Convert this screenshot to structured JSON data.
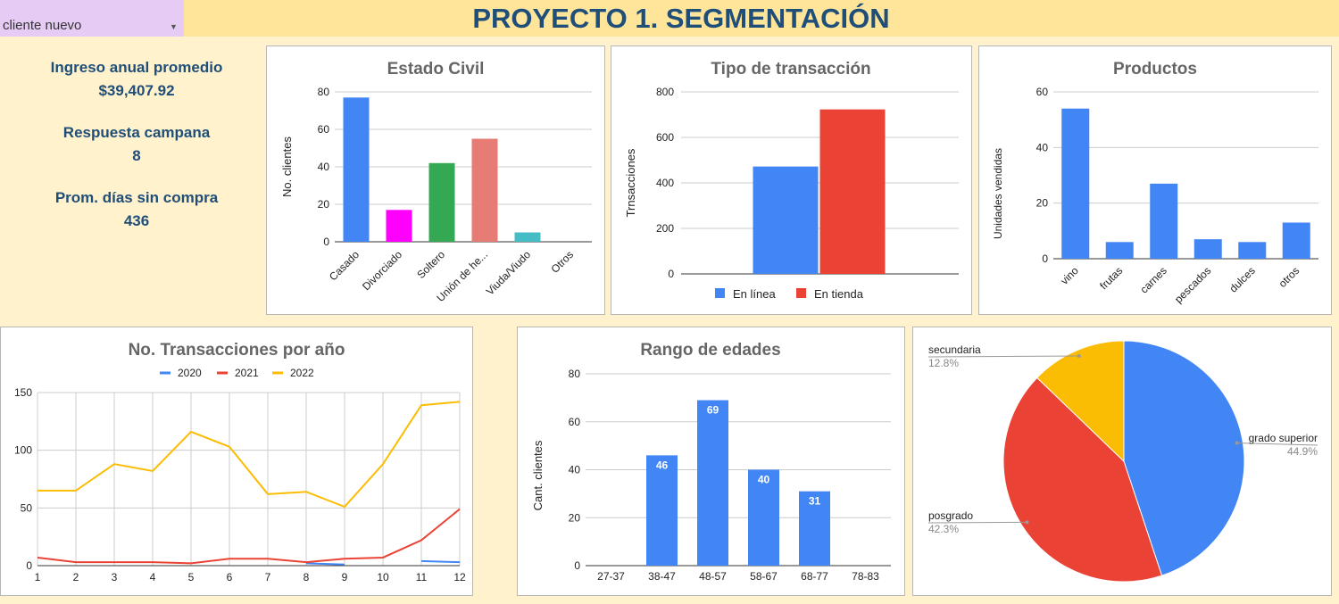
{
  "filter": {
    "selected": "cliente nuevo"
  },
  "header": {
    "title": "PROYECTO 1. SEGMENTACIÓN"
  },
  "kpis": [
    {
      "label": "Ingreso anual promedio",
      "value": "$39,407.92"
    },
    {
      "label": "Respuesta campana",
      "value": "8"
    },
    {
      "label": "Prom. días sin compra",
      "value": "436"
    }
  ],
  "colors": {
    "blue": "#4285f4",
    "red": "#ea4335",
    "yellow": "#fbbc04",
    "green": "#34a853",
    "magenta": "#ff00ff",
    "salmon": "#e67c73",
    "teal": "#46bdc6",
    "title_blue": "#1f4e79"
  },
  "chart_data": [
    {
      "type": "bar",
      "title": "Estado Civil",
      "xlabel": "",
      "ylabel": "No. clientes",
      "categories": [
        "Casado",
        "Divorciado",
        "Soltero",
        "Unión de he...",
        "Viuda/Viudo",
        "Otros"
      ],
      "values": [
        77,
        17,
        42,
        55,
        5,
        0
      ],
      "colors": [
        "#4285f4",
        "#ff00ff",
        "#34a853",
        "#e67c73",
        "#46bdc6",
        "#4285f4"
      ],
      "ylim": [
        0,
        80
      ],
      "yticks": [
        0,
        20,
        40,
        60,
        80
      ],
      "grid": true
    },
    {
      "type": "bar",
      "title": "Tipo de transacción",
      "xlabel": "",
      "ylabel": "Trnsacciones",
      "series": [
        {
          "name": "En línea",
          "values": [
            472
          ],
          "color": "#4285f4"
        },
        {
          "name": "En tienda",
          "values": [
            723
          ],
          "color": "#ea4335"
        }
      ],
      "ylim": [
        0,
        800
      ],
      "yticks": [
        0,
        200,
        400,
        600,
        800
      ],
      "legend": "bottom",
      "grid": true
    },
    {
      "type": "bar",
      "title": "Productos",
      "xlabel": "",
      "ylabel": "Unidades vendidas",
      "categories": [
        "vino",
        "frutas",
        "carnes",
        "pescados",
        "dulces",
        "otros"
      ],
      "values": [
        54,
        6,
        27,
        7,
        6,
        13
      ],
      "ylim": [
        0,
        60
      ],
      "yticks": [
        0,
        20,
        40,
        60
      ],
      "grid": true
    },
    {
      "type": "line",
      "title": "No. Transacciones por año",
      "xlabel": "",
      "ylabel": "",
      "x": [
        1,
        2,
        3,
        4,
        5,
        6,
        7,
        8,
        9,
        10,
        11,
        12
      ],
      "series": [
        {
          "name": "2020",
          "color": "#4285f4",
          "values": [
            null,
            null,
            null,
            null,
            null,
            null,
            null,
            2,
            1,
            null,
            4,
            3
          ]
        },
        {
          "name": "2021",
          "color": "#ea4335",
          "values": [
            7,
            3,
            3,
            3,
            2,
            6,
            6,
            3,
            6,
            7,
            22,
            49
          ]
        },
        {
          "name": "2022",
          "color": "#fbbc04",
          "values": [
            65,
            65,
            88,
            82,
            116,
            103,
            62,
            64,
            51,
            88,
            139,
            142
          ]
        }
      ],
      "ylim": [
        0,
        150
      ],
      "yticks": [
        0,
        50,
        100,
        150
      ],
      "legend": "top",
      "grid": true
    },
    {
      "type": "bar",
      "title": "Rango de edades",
      "xlabel": "",
      "ylabel": "Cant. clientes",
      "categories": [
        "27-37",
        "38-47",
        "48-57",
        "58-67",
        "68-77",
        "78-83"
      ],
      "values": [
        0,
        46,
        69,
        40,
        31,
        0
      ],
      "data_labels": [
        "",
        "46",
        "69",
        "40",
        "31",
        ""
      ],
      "ylim": [
        0,
        80
      ],
      "yticks": [
        0,
        20,
        40,
        60,
        80
      ],
      "grid": true
    },
    {
      "type": "pie",
      "title": "",
      "slices": [
        {
          "label": "grado superior",
          "pct": "44.9%",
          "value": 44.9,
          "color": "#4285f4"
        },
        {
          "label": "posgrado",
          "pct": "42.3%",
          "value": 42.3,
          "color": "#ea4335"
        },
        {
          "label": "secundaria",
          "pct": "12.8%",
          "value": 12.8,
          "color": "#fbbc04"
        }
      ]
    }
  ]
}
